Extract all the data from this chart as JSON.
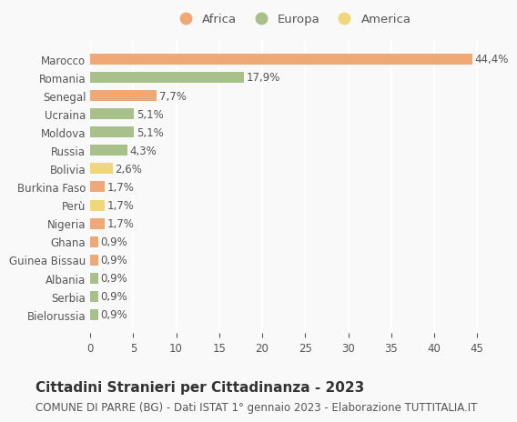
{
  "countries": [
    "Marocco",
    "Romania",
    "Senegal",
    "Ucraina",
    "Moldova",
    "Russia",
    "Bolivia",
    "Burkina Faso",
    "Perù",
    "Nigeria",
    "Ghana",
    "Guinea Bissau",
    "Albania",
    "Serbia",
    "Bielorussia"
  ],
  "values": [
    44.4,
    17.9,
    7.7,
    5.1,
    5.1,
    4.3,
    2.6,
    1.7,
    1.7,
    1.7,
    0.9,
    0.9,
    0.9,
    0.9,
    0.9
  ],
  "labels": [
    "44,4%",
    "17,9%",
    "7,7%",
    "5,1%",
    "5,1%",
    "4,3%",
    "2,6%",
    "1,7%",
    "1,7%",
    "1,7%",
    "0,9%",
    "0,9%",
    "0,9%",
    "0,9%",
    "0,9%"
  ],
  "continents": [
    "Africa",
    "Europa",
    "Africa",
    "Europa",
    "Europa",
    "Europa",
    "America",
    "Africa",
    "America",
    "Africa",
    "Africa",
    "Africa",
    "Europa",
    "Europa",
    "Europa"
  ],
  "colors": {
    "Africa": "#F0A875",
    "Europa": "#A8C08A",
    "America": "#F0D878"
  },
  "legend_order": [
    "Africa",
    "Europa",
    "America"
  ],
  "title": "Cittadini Stranieri per Cittadinanza - 2023",
  "subtitle": "COMUNE DI PARRE (BG) - Dati ISTAT 1° gennaio 2023 - Elaborazione TUTTITALIA.IT",
  "xlim": [
    0,
    47
  ],
  "xticks": [
    0,
    5,
    10,
    15,
    20,
    25,
    30,
    35,
    40,
    45
  ],
  "background_color": "#f9f9f9",
  "grid_color": "#ffffff",
  "bar_height": 0.6,
  "label_fontsize": 8.5,
  "tick_fontsize": 8.5,
  "title_fontsize": 11,
  "subtitle_fontsize": 8.5
}
